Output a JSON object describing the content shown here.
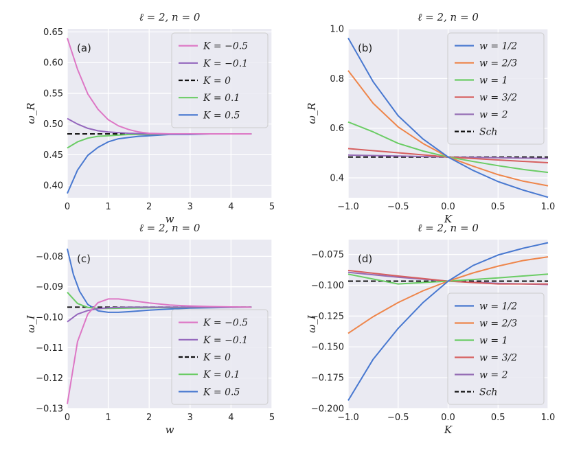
{
  "chart_data": [
    {
      "id": "a",
      "type": "line",
      "title": "ℓ = 2, n = 0",
      "panel_label": "(a)",
      "xlabel": "w",
      "ylabel": "ω_R",
      "xlim": [
        0,
        5
      ],
      "ylim": [
        0.38,
        0.655
      ],
      "xticks": [
        0,
        1,
        2,
        3,
        4,
        5
      ],
      "xtick_labels": [
        "0",
        "1",
        "2",
        "3",
        "4",
        "5"
      ],
      "yticks": [
        0.4,
        0.45,
        0.5,
        0.55,
        0.6,
        0.65
      ],
      "ytick_labels": [
        "0.40",
        "0.45",
        "0.50",
        "0.55",
        "0.60",
        "0.65"
      ],
      "legend_position": "top-right",
      "series": [
        {
          "name": "K = −0.5",
          "color": "#dd77c5",
          "style": "solid",
          "x": [
            0,
            0.25,
            0.5,
            0.75,
            1,
            1.25,
            1.5,
            1.75,
            2,
            2.5,
            3,
            3.5,
            4,
            4.5
          ],
          "y": [
            0.64,
            0.589,
            0.549,
            0.524,
            0.507,
            0.497,
            0.491,
            0.487,
            0.485,
            0.484,
            0.484,
            0.484,
            0.484,
            0.484
          ]
        },
        {
          "name": "K = −0.1",
          "color": "#9467bd",
          "style": "solid",
          "x": [
            0,
            0.25,
            0.5,
            0.75,
            1,
            1.5,
            2,
            2.5,
            3,
            3.5,
            4,
            4.5
          ],
          "y": [
            0.509,
            0.5,
            0.493,
            0.489,
            0.487,
            0.485,
            0.484,
            0.484,
            0.484,
            0.484,
            0.484,
            0.484
          ]
        },
        {
          "name": "K = 0",
          "color": "#111111",
          "style": "dashed",
          "x": [
            0,
            4.5
          ],
          "y": [
            0.484,
            0.484
          ]
        },
        {
          "name": "K = 0.1",
          "color": "#6acc64",
          "style": "solid",
          "x": [
            0,
            0.25,
            0.5,
            0.75,
            1,
            1.5,
            2,
            2.5,
            3,
            3.5,
            4,
            4.5
          ],
          "y": [
            0.461,
            0.471,
            0.477,
            0.48,
            0.481,
            0.483,
            0.483,
            0.484,
            0.484,
            0.484,
            0.484,
            0.484
          ]
        },
        {
          "name": "K = 0.5",
          "color": "#4878d0",
          "style": "solid",
          "x": [
            0,
            0.25,
            0.5,
            0.75,
            1,
            1.25,
            1.5,
            1.75,
            2,
            2.5,
            3,
            3.5,
            4,
            4.5
          ],
          "y": [
            0.387,
            0.425,
            0.449,
            0.462,
            0.471,
            0.476,
            0.478,
            0.48,
            0.481,
            0.483,
            0.483,
            0.484,
            0.484,
            0.484
          ]
        }
      ]
    },
    {
      "id": "b",
      "type": "line",
      "title": "ℓ = 2, n = 0",
      "panel_label": "(b)",
      "xlabel": "K",
      "ylabel": "ω_R",
      "xlim": [
        -1.0,
        1.0
      ],
      "ylim": [
        0.32,
        1.0
      ],
      "xticks": [
        -1.0,
        -0.5,
        0.0,
        0.5,
        1.0
      ],
      "xtick_labels": [
        "−1.0",
        "−0.5",
        "0.0",
        "0.5",
        "1.0"
      ],
      "yticks": [
        0.4,
        0.6,
        0.8,
        1.0
      ],
      "ytick_labels": [
        "0.4",
        "0.6",
        "0.8",
        "1.0"
      ],
      "legend_position": "top-right",
      "series": [
        {
          "name": "w = 1/2",
          "color": "#4878d0",
          "style": "solid",
          "x": [
            -1,
            -0.75,
            -0.5,
            -0.25,
            0,
            0.25,
            0.5,
            0.75,
            1
          ],
          "y": [
            0.963,
            0.787,
            0.65,
            0.556,
            0.484,
            0.43,
            0.385,
            0.351,
            0.322
          ]
        },
        {
          "name": "w = 2/3",
          "color": "#ee854a",
          "style": "solid",
          "x": [
            -1,
            -0.75,
            -0.5,
            -0.25,
            0,
            0.25,
            0.5,
            0.75,
            1
          ],
          "y": [
            0.832,
            0.7,
            0.605,
            0.538,
            0.484,
            0.447,
            0.413,
            0.387,
            0.368
          ]
        },
        {
          "name": "w = 1",
          "color": "#6acc64",
          "style": "solid",
          "x": [
            -1,
            -0.75,
            -0.5,
            -0.25,
            0,
            0.25,
            0.5,
            0.75,
            1
          ],
          "y": [
            0.625,
            0.585,
            0.539,
            0.508,
            0.484,
            0.466,
            0.449,
            0.434,
            0.422
          ]
        },
        {
          "name": "w = 3/2",
          "color": "#d65f5f",
          "style": "solid",
          "x": [
            -1,
            -0.5,
            0,
            0.5,
            1
          ],
          "y": [
            0.518,
            0.501,
            0.484,
            0.472,
            0.461
          ]
        },
        {
          "name": "w = 2",
          "color": "#956cb4",
          "style": "solid",
          "x": [
            -1,
            -0.5,
            0,
            0.5,
            1
          ],
          "y": [
            0.492,
            0.488,
            0.484,
            0.481,
            0.478
          ]
        },
        {
          "name": "Sch",
          "color": "#111111",
          "style": "dashed",
          "x": [
            -1,
            1
          ],
          "y": [
            0.484,
            0.484
          ]
        }
      ]
    },
    {
      "id": "c",
      "type": "line",
      "title": "ℓ = 2, n = 0",
      "panel_label": "(c)",
      "xlabel": "w",
      "ylabel": "ω_I",
      "xlim": [
        0,
        5
      ],
      "ylim": [
        -0.13,
        -0.0745
      ],
      "xticks": [
        0,
        1,
        2,
        3,
        4,
        5
      ],
      "xtick_labels": [
        "0",
        "1",
        "2",
        "3",
        "4",
        "5"
      ],
      "yticks": [
        -0.13,
        -0.12,
        -0.11,
        -0.1,
        -0.09,
        -0.08
      ],
      "ytick_labels": [
        "−0.13",
        "−0.12",
        "−0.11",
        "−0.10",
        "−0.09",
        "−0.08"
      ],
      "legend_position": "lower-right",
      "series": [
        {
          "name": "K = −0.5",
          "color": "#dd77c5",
          "style": "solid",
          "x": [
            0,
            0.25,
            0.5,
            0.75,
            1,
            1.25,
            1.5,
            2,
            2.5,
            3,
            3.5,
            4,
            4.5
          ],
          "y": [
            -0.1285,
            -0.108,
            -0.099,
            -0.0952,
            -0.094,
            -0.094,
            -0.0944,
            -0.0953,
            -0.096,
            -0.0963,
            -0.0965,
            -0.0966,
            -0.0967
          ]
        },
        {
          "name": "K = −0.1",
          "color": "#9467bd",
          "style": "solid",
          "x": [
            0,
            0.25,
            0.5,
            0.75,
            1,
            1.5,
            2,
            3,
            4,
            4.5
          ],
          "y": [
            -0.1015,
            -0.099,
            -0.0978,
            -0.0972,
            -0.0969,
            -0.0967,
            -0.0967,
            -0.0967,
            -0.0967,
            -0.0967
          ]
        },
        {
          "name": "K = 0",
          "color": "#111111",
          "style": "dashed",
          "x": [
            0,
            4.5
          ],
          "y": [
            -0.0967,
            -0.0967
          ]
        },
        {
          "name": "K = 0.1",
          "color": "#6acc64",
          "style": "solid",
          "x": [
            0,
            0.25,
            0.5,
            0.75,
            1,
            1.5,
            2,
            3,
            4,
            4.5
          ],
          "y": [
            -0.0918,
            -0.0955,
            -0.0968,
            -0.0971,
            -0.0971,
            -0.097,
            -0.0969,
            -0.0968,
            -0.0967,
            -0.0967
          ]
        },
        {
          "name": "K = 0.5",
          "color": "#4878d0",
          "style": "solid",
          "x": [
            0,
            0.15,
            0.3,
            0.5,
            0.75,
            1,
            1.25,
            1.5,
            2,
            2.5,
            3,
            3.5,
            4,
            4.5
          ],
          "y": [
            -0.0775,
            -0.086,
            -0.0915,
            -0.0958,
            -0.0979,
            -0.0984,
            -0.0984,
            -0.0982,
            -0.0977,
            -0.0973,
            -0.097,
            -0.0969,
            -0.0968,
            -0.0967
          ]
        }
      ]
    },
    {
      "id": "d",
      "type": "line",
      "title": "ℓ = 2, n = 0",
      "panel_label": "(d)",
      "xlabel": "K",
      "ylabel": "ω_I",
      "xlim": [
        -1.0,
        1.0
      ],
      "ylim": [
        -0.2,
        -0.063
      ],
      "xticks": [
        -1.0,
        -0.5,
        0.0,
        0.5,
        1.0
      ],
      "xtick_labels": [
        "−1.0",
        "−0.5",
        "0.0",
        "0.5",
        "1.0"
      ],
      "yticks": [
        -0.2,
        -0.175,
        -0.15,
        -0.125,
        -0.1,
        -0.075
      ],
      "ytick_labels": [
        "−0.200",
        "−0.175",
        "−0.150",
        "−0.125",
        "−0.100",
        "−0.075"
      ],
      "legend_position": "lower-right",
      "series": [
        {
          "name": "w = 1/2",
          "color": "#4878d0",
          "style": "solid",
          "x": [
            -1,
            -0.75,
            -0.5,
            -0.25,
            0,
            0.25,
            0.5,
            0.75,
            1
          ],
          "y": [
            -0.1935,
            -0.16,
            -0.135,
            -0.114,
            -0.0967,
            -0.084,
            -0.0755,
            -0.07,
            -0.0655
          ]
        },
        {
          "name": "w = 2/3",
          "color": "#ee854a",
          "style": "solid",
          "x": [
            -1,
            -0.75,
            -0.5,
            -0.25,
            0,
            0.25,
            0.5,
            0.75,
            1
          ],
          "y": [
            -0.139,
            -0.1255,
            -0.114,
            -0.1045,
            -0.0967,
            -0.09,
            -0.0845,
            -0.08,
            -0.077
          ]
        },
        {
          "name": "w = 1",
          "color": "#6acc64",
          "style": "solid",
          "x": [
            -1,
            -0.5,
            0,
            0.5,
            1
          ],
          "y": [
            -0.091,
            -0.099,
            -0.0967,
            -0.094,
            -0.091
          ]
        },
        {
          "name": "w = 3/2",
          "color": "#d65f5f",
          "style": "solid",
          "x": [
            -1,
            -0.5,
            0,
            0.5,
            1
          ],
          "y": [
            -0.088,
            -0.0925,
            -0.0967,
            -0.099,
            -0.099
          ]
        },
        {
          "name": "w = 2",
          "color": "#956cb4",
          "style": "solid",
          "x": [
            -1,
            -0.5,
            0,
            0.5,
            1
          ],
          "y": [
            -0.0895,
            -0.0935,
            -0.0967,
            -0.0985,
            -0.0995
          ]
        },
        {
          "name": "Sch",
          "color": "#111111",
          "style": "dashed",
          "x": [
            -1,
            1
          ],
          "y": [
            -0.0967,
            -0.0967
          ]
        }
      ]
    }
  ]
}
